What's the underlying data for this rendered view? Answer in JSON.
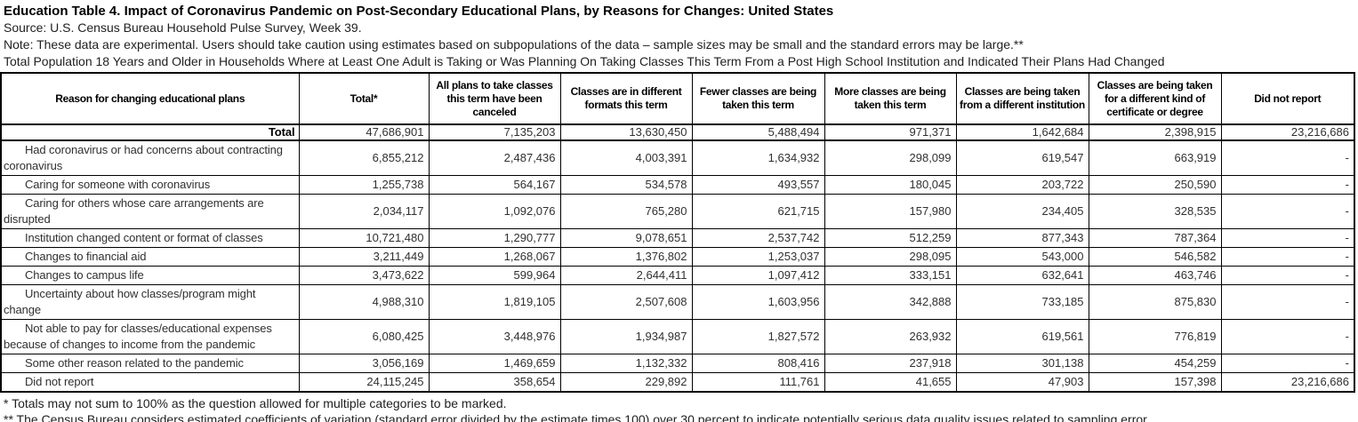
{
  "page": {
    "title": "Education Table 4. Impact of Coronavirus Pandemic on Post-Secondary Educational Plans, by Reasons for Changes: United States",
    "source": "Source: U.S. Census Bureau Household Pulse Survey, Week 39.",
    "note": "Note: These data are experimental. Users should take caution using estimates based on subpopulations of the data – sample sizes may be small and the standard errors may be large.**",
    "subtitle": "Total Population 18 Years and Older in Households Where at Least One Adult is Taking or Was Planning On Taking Classes This Term From a Post High School Institution and Indicated Their Plans Had Changed"
  },
  "table": {
    "columns": [
      "Reason for changing educational plans",
      "Total*",
      "All plans to take classes this term have been canceled",
      "Classes are in different formats this term",
      "Fewer classes are being taken this term",
      "More classes are being taken this term",
      "Classes are being taken from a different institution",
      "Classes are being taken for a different kind of certificate or degree",
      "Did not report"
    ],
    "rows": [
      {
        "label": "Total",
        "style": "total",
        "values": [
          "47,686,901",
          "7,135,203",
          "13,630,450",
          "5,488,494",
          "971,371",
          "1,642,684",
          "2,398,915",
          "23,216,686"
        ]
      },
      {
        "label": "Had coronavirus or had concerns about contracting coronavirus",
        "style": "indent",
        "values": [
          "6,855,212",
          "2,487,436",
          "4,003,391",
          "1,634,932",
          "298,099",
          "619,547",
          "663,919",
          "-"
        ]
      },
      {
        "label": "Caring for someone with coronavirus",
        "style": "indent",
        "values": [
          "1,255,738",
          "564,167",
          "534,578",
          "493,557",
          "180,045",
          "203,722",
          "250,590",
          "-"
        ]
      },
      {
        "label": "Caring for others whose care arrangements are disrupted",
        "style": "indent",
        "values": [
          "2,034,117",
          "1,092,076",
          "765,280",
          "621,715",
          "157,980",
          "234,405",
          "328,535",
          "-"
        ]
      },
      {
        "label": "Institution changed content or format of classes",
        "style": "indent",
        "values": [
          "10,721,480",
          "1,290,777",
          "9,078,651",
          "2,537,742",
          "512,259",
          "877,343",
          "787,364",
          "-"
        ]
      },
      {
        "label": "Changes to financial aid",
        "style": "indent",
        "values": [
          "3,211,449",
          "1,268,067",
          "1,376,802",
          "1,253,037",
          "298,095",
          "543,000",
          "546,582",
          "-"
        ]
      },
      {
        "label": "Changes to campus life",
        "style": "indent",
        "values": [
          "3,473,622",
          "599,964",
          "2,644,411",
          "1,097,412",
          "333,151",
          "632,641",
          "463,746",
          "-"
        ]
      },
      {
        "label": "Uncertainty about how classes/program might change",
        "style": "indent",
        "values": [
          "4,988,310",
          "1,819,105",
          "2,507,608",
          "1,603,956",
          "342,888",
          "733,185",
          "875,830",
          "-"
        ]
      },
      {
        "label": "Not able to pay for classes/educational expenses because of changes to income from the pandemic",
        "style": "indent",
        "values": [
          "6,080,425",
          "3,448,976",
          "1,934,987",
          "1,827,572",
          "263,932",
          "619,561",
          "776,819",
          "-"
        ]
      },
      {
        "label": "Some other reason related to the pandemic",
        "style": "indent",
        "values": [
          "3,056,169",
          "1,469,659",
          "1,132,332",
          "808,416",
          "237,918",
          "301,138",
          "454,259",
          "-"
        ]
      },
      {
        "label": "Did not report",
        "style": "indent",
        "values": [
          "24,115,245",
          "358,654",
          "229,892",
          "111,761",
          "41,655",
          "47,903",
          "157,398",
          "23,216,686"
        ]
      }
    ]
  },
  "footnotes": [
    "* Totals may not sum to 100% as the question allowed for multiple categories to be marked.",
    "** The Census Bureau considers estimated coefficients of variation (standard error divided by the estimate times 100) over 30 percent to indicate potentially serious data quality issues related to sampling error."
  ]
}
